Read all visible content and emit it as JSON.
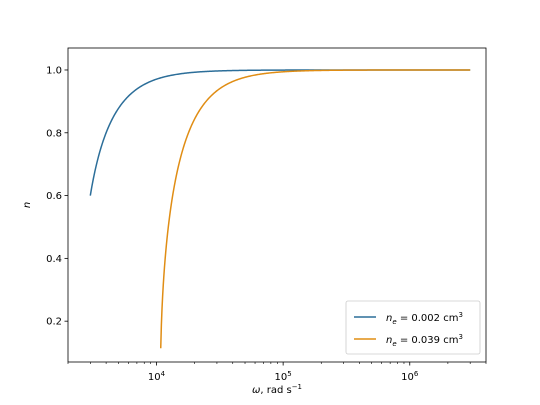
{
  "chart_data": {
    "type": "line",
    "xlabel": {
      "symbol": "ω",
      "text": ", rad s",
      "exp": "−1"
    },
    "ylabel": "n",
    "xscale": "log",
    "xlim": [
      2000,
      4000000
    ],
    "ylim": [
      0.07,
      1.07
    ],
    "xticks": [
      {
        "value": 10000,
        "base": "10",
        "exp": "4"
      },
      {
        "value": 100000,
        "base": "10",
        "exp": "5"
      },
      {
        "value": 1000000,
        "base": "10",
        "exp": "6"
      }
    ],
    "yticks": [
      {
        "value": 0.2,
        "label": "0.2"
      },
      {
        "value": 0.4,
        "label": "0.4"
      },
      {
        "value": 0.6,
        "label": "0.6"
      },
      {
        "value": 0.8,
        "label": "0.8"
      },
      {
        "value": 1.0,
        "label": "1.0"
      }
    ],
    "legend_position": "lower-right",
    "series": [
      {
        "name": {
          "var": "n",
          "sub": "e",
          "text": " = 0.002 cm",
          "exp": "3"
        },
        "color": "#2c6e99",
        "plasma_omega": 2400,
        "omega_range": [
          3000,
          3000000
        ]
      },
      {
        "name": {
          "var": "n",
          "sub": "e",
          "text": " = 0.039 cm",
          "exp": "3"
        },
        "color": "#e08d14",
        "plasma_omega": 10730,
        "omega_range": [
          10800,
          3000000
        ]
      }
    ]
  }
}
